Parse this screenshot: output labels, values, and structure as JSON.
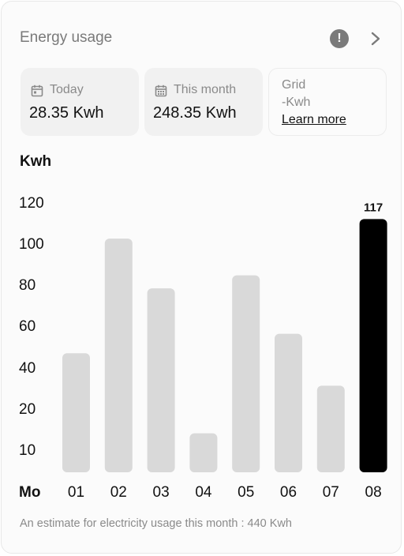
{
  "header": {
    "title": "Energy usage",
    "alert_glyph": "!",
    "alert_icon": "exclamation-circle-icon",
    "next_icon": "chevron-right-icon"
  },
  "stats": {
    "today": {
      "icon": "calendar-icon",
      "label": "Today",
      "value": "28.35 Kwh"
    },
    "month": {
      "icon": "calendar-grid-icon",
      "label": "This month",
      "value": "248.35 Kwh"
    },
    "grid": {
      "label": "Grid",
      "value": "-Kwh",
      "link": "Learn more"
    }
  },
  "colors": {
    "bar": "#d9d9d9",
    "highlight": "#000000",
    "muted": "#7a7a7a"
  },
  "chart_data": {
    "type": "bar",
    "ylabel": "Kwh",
    "xlabel": "Mo",
    "yticks": [
      "120",
      "100",
      "80",
      "60",
      "40",
      "20",
      "10"
    ],
    "categories": [
      "01",
      "02",
      "03",
      "04",
      "05",
      "06",
      "07",
      "08"
    ],
    "values": [
      55,
      108,
      85,
      18,
      91,
      64,
      40,
      117
    ],
    "highlight_index": 7,
    "highlight_label": "117"
  },
  "footer": {
    "note": "An estimate for electricity usage this month : 440 Kwh"
  }
}
